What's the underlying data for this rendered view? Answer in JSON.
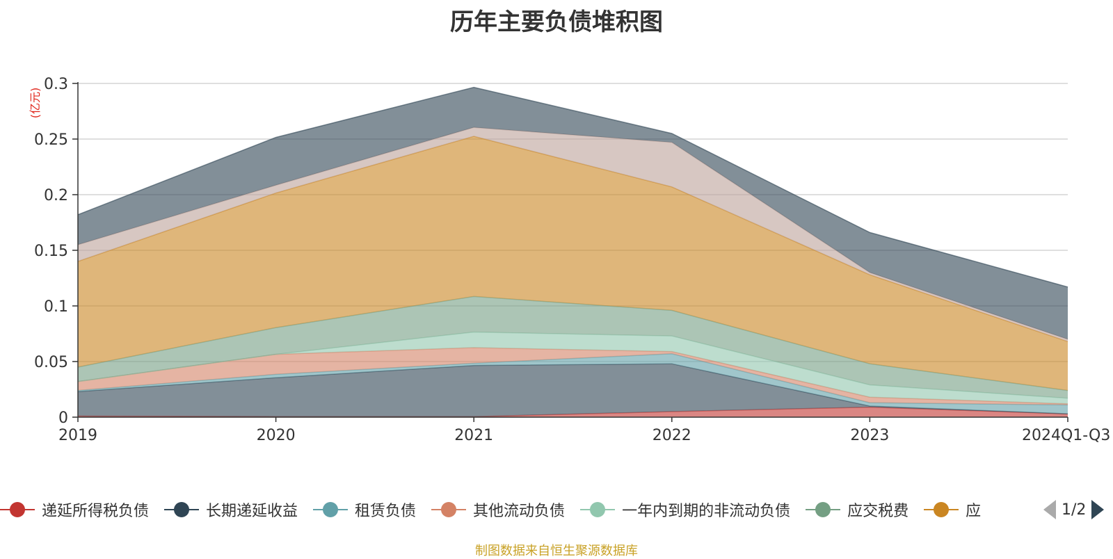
{
  "chart_data": {
    "type": "area",
    "stacked": true,
    "title": "历年主要负债堆积图",
    "ylabel": "(亿元)",
    "categories": [
      "2019",
      "2020",
      "2021",
      "2022",
      "2023",
      "2024Q1-Q3"
    ],
    "ylim": [
      0,
      0.3
    ],
    "yticks": [
      0,
      0.05,
      0.1,
      0.15,
      0.2,
      0.25,
      0.3
    ],
    "ytick_labels": [
      "0",
      "0.05",
      "0.1",
      "0.15",
      "0.2",
      "0.25",
      "0.3"
    ],
    "grid": true,
    "legend_position": "bottom",
    "series": [
      {
        "name": "递延所得税负债",
        "color": "#c23531",
        "values": [
          0.001,
          0.0005,
          0.0005,
          0.005,
          0.009,
          0.003
        ]
      },
      {
        "name": "长期递延收益",
        "color": "#2f4554",
        "values": [
          0.022,
          0.035,
          0.046,
          0.043,
          0.001,
          0.0
        ]
      },
      {
        "name": "租赁负债",
        "color": "#61a0a8",
        "values": [
          0.001,
          0.003,
          0.002,
          0.009,
          0.003,
          0.008
        ]
      },
      {
        "name": "其他流动负债",
        "color": "#d48265",
        "values": [
          0.008,
          0.018,
          0.014,
          0.002,
          0.005,
          0.001
        ]
      },
      {
        "name": "一年内到期的非流动负债",
        "color": "#91c7ae",
        "values": [
          0.0,
          0.0,
          0.014,
          0.014,
          0.011,
          0.005
        ]
      },
      {
        "name": "应交税费",
        "color": "#749f83",
        "values": [
          0.013,
          0.024,
          0.032,
          0.023,
          0.019,
          0.007
        ]
      },
      {
        "name": "应",
        "color": "#ca8622",
        "values": [
          0.095,
          0.121,
          0.144,
          0.111,
          0.08,
          0.044
        ]
      },
      {
        "name": "",
        "color": "#bda29a",
        "values": [
          0.015,
          0.007,
          0.008,
          0.04,
          0.002,
          0.002
        ]
      },
      {
        "name": "",
        "color": "#2f4554",
        "values": [
          0.027,
          0.043,
          0.036,
          0.008,
          0.036,
          0.047
        ]
      }
    ]
  },
  "legend": {
    "pager": "1/2"
  },
  "footer": {
    "source": "制图数据来自恒生聚源数据库"
  }
}
